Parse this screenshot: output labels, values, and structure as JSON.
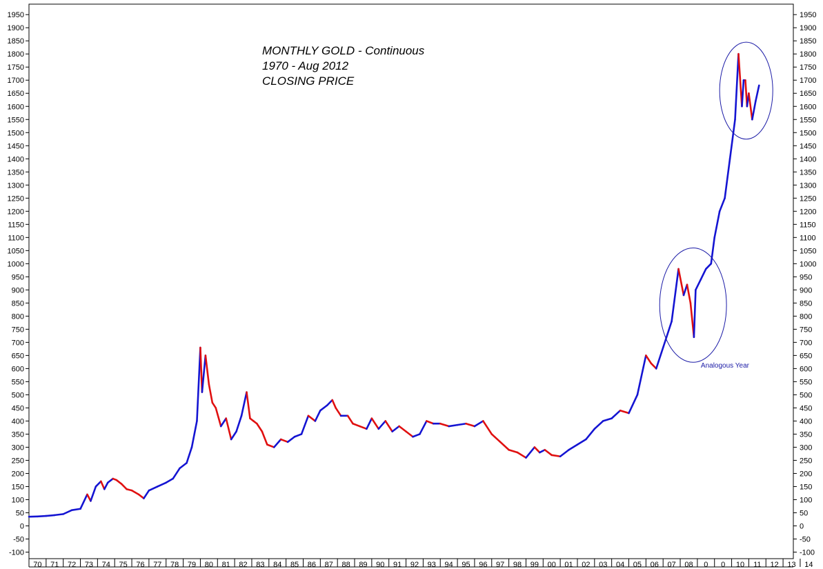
{
  "chart_data": {
    "type": "line",
    "title_lines": [
      "MONTHLY GOLD - Continuous",
      "1970 - Aug 2012",
      "CLOSING PRICE"
    ],
    "xlabel": "",
    "ylabel": "",
    "ylim": [
      -125,
      1990
    ],
    "xlim": [
      1970,
      2014.6
    ],
    "grid": false,
    "y_ticks": [
      -100,
      -50,
      0,
      50,
      100,
      150,
      200,
      250,
      300,
      350,
      400,
      450,
      500,
      550,
      600,
      650,
      700,
      750,
      800,
      850,
      900,
      950,
      1000,
      1050,
      1100,
      1150,
      1200,
      1250,
      1300,
      1350,
      1400,
      1450,
      1500,
      1550,
      1600,
      1650,
      1700,
      1750,
      1800,
      1850,
      1900,
      1950
    ],
    "x_tick_labels": [
      "70",
      "71",
      "72",
      "73",
      "74",
      "75",
      "76",
      "77",
      "78",
      "79",
      "80",
      "81",
      "82",
      "83",
      "84",
      "85",
      "86",
      "87",
      "88",
      "89",
      "90",
      "91",
      "92",
      "93",
      "94",
      "95",
      "96",
      "97",
      "98",
      "99",
      "00",
      "01",
      "02",
      "03",
      "04",
      "05",
      "06",
      "07",
      "08",
      "0",
      "0",
      "10",
      "11",
      "12",
      "13",
      "14"
    ],
    "up_color": "#1414d2",
    "down_color": "#e01010",
    "series": [
      {
        "x": [
          1970.0,
          1970.5,
          1971.0,
          1971.5,
          1972.0,
          1972.5,
          1973.0,
          1973.4,
          1973.6,
          1973.9,
          1974.2,
          1974.4,
          1974.6,
          1974.9,
          1975.1,
          1975.4,
          1975.7,
          1976.0,
          1976.4,
          1976.7,
          1977.0,
          1977.5,
          1978.0,
          1978.4,
          1978.8,
          1979.2,
          1979.5,
          1979.8,
          1980.0,
          1980.1,
          1980.3,
          1980.5,
          1980.7,
          1980.9,
          1981.2,
          1981.5,
          1981.8,
          1982.1,
          1982.4,
          1982.7,
          1982.9,
          1983.1,
          1983.3,
          1983.6,
          1983.9,
          1984.3,
          1984.7,
          1985.1,
          1985.5,
          1985.9,
          1986.3,
          1986.7,
          1987.0,
          1987.4,
          1987.7,
          1987.9,
          1988.2,
          1988.6,
          1988.9,
          1989.3,
          1989.7,
          1990.0,
          1990.4,
          1990.8,
          1991.2,
          1991.6,
          1992.0,
          1992.4,
          1992.8,
          1993.2,
          1993.6,
          1994.0,
          1994.5,
          1995.0,
          1995.5,
          1996.0,
          1996.5,
          1997.0,
          1997.5,
          1998.0,
          1998.5,
          1999.0,
          1999.5,
          1999.8,
          2000.1,
          2000.5,
          2001.0,
          2001.5,
          2002.0,
          2002.5,
          2003.0,
          2003.5,
          2004.0,
          2004.5,
          2005.0,
          2005.5,
          2006.0,
          2006.3,
          2006.6,
          2007.0,
          2007.5,
          2007.9,
          2008.2,
          2008.4,
          2008.6,
          2008.8,
          2008.9,
          2009.2,
          2009.5,
          2009.8,
          2010.0,
          2010.3,
          2010.6,
          2010.9,
          2011.2,
          2011.4,
          2011.6,
          2011.7,
          2011.8,
          2011.9,
          2012.0,
          2012.2,
          2012.4,
          2012.6
        ],
        "values": [
          35,
          36,
          38,
          41,
          45,
          60,
          65,
          120,
          95,
          150,
          170,
          140,
          165,
          180,
          175,
          160,
          140,
          135,
          120,
          105,
          135,
          150,
          165,
          180,
          220,
          240,
          300,
          400,
          680,
          510,
          650,
          540,
          470,
          450,
          380,
          410,
          330,
          360,
          420,
          510,
          410,
          400,
          390,
          360,
          310,
          300,
          330,
          320,
          340,
          350,
          420,
          400,
          440,
          460,
          480,
          450,
          420,
          420,
          390,
          380,
          370,
          410,
          370,
          400,
          360,
          380,
          360,
          340,
          350,
          400,
          390,
          390,
          380,
          385,
          390,
          380,
          400,
          350,
          320,
          290,
          280,
          260,
          300,
          280,
          290,
          270,
          265,
          290,
          310,
          330,
          370,
          400,
          410,
          440,
          430,
          500,
          650,
          620,
          600,
          680,
          780,
          980,
          880,
          920,
          850,
          720,
          900,
          940,
          980,
          1000,
          1100,
          1200,
          1250,
          1400,
          1550,
          1800,
          1600,
          1700,
          1700,
          1600,
          1650,
          1550,
          1620,
          1680
        ]
      }
    ],
    "annotations": [
      {
        "label": "Analogous Year",
        "x": 2008.8,
        "y": 620
      }
    ]
  }
}
